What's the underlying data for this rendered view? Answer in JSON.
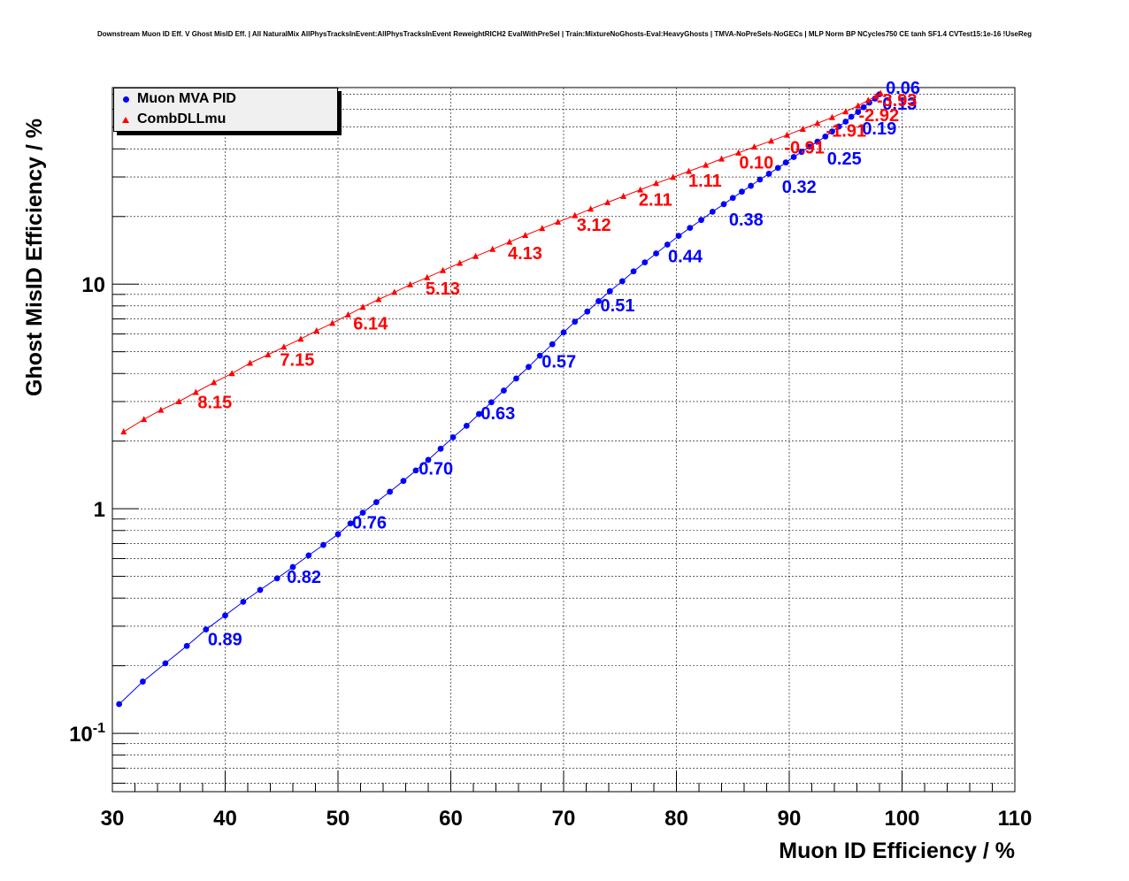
{
  "chart_data": {
    "type": "line",
    "title": "Downstream Muon ID Eff. V Ghost MisID Eff. | All NaturalMix AllPhysTracksInEvent:AllPhysTracksInEvent ReweightRICH2 EvalWithPreSel | Train:MixtureNoGhosts-Eval:HeavyGhosts | TMVA-NoPreSels-NoGECs | MLP Norm BP NCycles750 CE tanh SF1.4 CVTest15:1e-16 !UseReg",
    "xlabel": "Muon ID Efficiency / %",
    "ylabel": "Ghost MisID Efficiency / %",
    "xlim": [
      30,
      110
    ],
    "ylim": [
      0.055,
      75
    ],
    "yscale": "log",
    "grid": true,
    "legend_position": "top-left",
    "x_ticks": [
      "30",
      "40",
      "50",
      "60",
      "70",
      "80",
      "90",
      "100",
      "110"
    ],
    "y_ticks": [
      {
        "value": 0.1,
        "base": "10",
        "exp": "-1"
      },
      {
        "value": 1,
        "base": "1",
        "exp": ""
      },
      {
        "value": 10,
        "base": "10",
        "exp": ""
      }
    ],
    "series": [
      {
        "name": "Muon MVA PID",
        "color": "#0000ff",
        "marker": "circle",
        "x": [
          30.6,
          32.7,
          34.7,
          36.6,
          38.3,
          40.0,
          41.6,
          43.1,
          44.6,
          46.0,
          47.4,
          48.7,
          50.0,
          51.1,
          52.2,
          53.4,
          54.6,
          55.8,
          56.9,
          58.0,
          59.1,
          60.2,
          61.4,
          62.5,
          63.6,
          64.7,
          65.8,
          66.9,
          67.9,
          69.0,
          70.0,
          71.0,
          72.1,
          73.1,
          74.1,
          75.2,
          76.2,
          77.2,
          78.2,
          79.2,
          80.2,
          81.2,
          82.2,
          83.2,
          84.2,
          85.0,
          85.8,
          86.6,
          87.4,
          88.2,
          89.0,
          89.7,
          90.4,
          91.1,
          91.8,
          92.5,
          93.2,
          93.8,
          94.4,
          95.0,
          95.5,
          96.1,
          96.6,
          97.1,
          97.6,
          98.0
        ],
        "y": [
          0.135,
          0.17,
          0.205,
          0.245,
          0.29,
          0.335,
          0.385,
          0.435,
          0.49,
          0.55,
          0.62,
          0.69,
          0.77,
          0.86,
          0.96,
          1.07,
          1.19,
          1.33,
          1.48,
          1.65,
          1.85,
          2.08,
          2.34,
          2.64,
          2.98,
          3.36,
          3.8,
          4.28,
          4.8,
          5.4,
          6.1,
          6.8,
          7.55,
          8.4,
          9.3,
          10.3,
          11.4,
          12.5,
          13.7,
          15.0,
          16.4,
          17.8,
          19.3,
          21.0,
          22.7,
          24.2,
          25.8,
          27.4,
          29.2,
          31.0,
          32.9,
          34.8,
          36.8,
          38.8,
          40.9,
          43.1,
          45.4,
          47.8,
          50.3,
          52.9,
          55.6,
          58.4,
          61.3,
          64.3,
          67.0,
          70.0
        ],
        "point_labels": [
          {
            "text": "0.89",
            "x": 38.3,
            "y": 0.29
          },
          {
            "text": "0.82",
            "x": 45.3,
            "y": 0.55
          },
          {
            "text": "0.76",
            "x": 51.1,
            "y": 0.96
          },
          {
            "text": "0.70",
            "x": 57.0,
            "y": 1.67
          },
          {
            "text": "0.63",
            "x": 62.5,
            "y": 2.95
          },
          {
            "text": "0.57",
            "x": 67.9,
            "y": 5.0
          },
          {
            "text": "0.51",
            "x": 73.1,
            "y": 8.9
          },
          {
            "text": "0.44",
            "x": 79.1,
            "y": 14.7
          },
          {
            "text": "0.38",
            "x": 84.5,
            "y": 21.5
          },
          {
            "text": "0.32",
            "x": 89.2,
            "y": 30.0
          },
          {
            "text": "0.25",
            "x": 93.2,
            "y": 40.2
          },
          {
            "text": "0.19",
            "x": 96.3,
            "y": 54.5
          },
          {
            "text": "0.13",
            "x": 98.1,
            "y": 70.5
          },
          {
            "text": "0.06",
            "x": 98.4,
            "y": 83.0
          }
        ]
      },
      {
        "name": "CombDLLmu",
        "color": "#ff0000",
        "marker": "triangle",
        "x": [
          31.0,
          32.8,
          34.3,
          35.9,
          37.4,
          39.0,
          40.6,
          42.2,
          43.8,
          45.2,
          46.7,
          48.1,
          49.5,
          50.9,
          52.2,
          53.6,
          55.0,
          56.4,
          57.9,
          59.3,
          60.8,
          62.2,
          63.7,
          65.2,
          66.6,
          68.1,
          69.5,
          71.0,
          72.4,
          73.9,
          75.3,
          76.8,
          78.2,
          79.7,
          81.1,
          82.6,
          84.0,
          85.5,
          86.9,
          88.4,
          89.8,
          91.2,
          92.5,
          93.8,
          95.0,
          96.1,
          97.0,
          97.7,
          98.1
        ],
        "y": [
          2.2,
          2.5,
          2.75,
          3.0,
          3.3,
          3.65,
          4.0,
          4.45,
          4.85,
          5.25,
          5.7,
          6.2,
          6.7,
          7.3,
          7.9,
          8.55,
          9.2,
          9.95,
          10.7,
          11.5,
          12.4,
          13.3,
          14.3,
          15.4,
          16.5,
          17.7,
          18.9,
          20.2,
          21.6,
          23.1,
          24.6,
          26.3,
          28.1,
          29.9,
          31.8,
          33.9,
          36.1,
          38.4,
          40.8,
          43.4,
          46.1,
          49.0,
          52.0,
          55.2,
          58.6,
          62.2,
          65.8,
          68.6,
          70.6
        ],
        "point_labels": [
          {
            "text": "8.15",
            "x": 37.4,
            "y": 3.3
          },
          {
            "text": "7.15",
            "x": 44.7,
            "y": 5.1
          },
          {
            "text": "6.14",
            "x": 51.2,
            "y": 7.4
          },
          {
            "text": "5.13",
            "x": 57.6,
            "y": 10.6
          },
          {
            "text": "4.13",
            "x": 64.9,
            "y": 15.2
          },
          {
            "text": "3.12",
            "x": 71.0,
            "y": 20.3
          },
          {
            "text": "2.11",
            "x": 76.5,
            "y": 26.3
          },
          {
            "text": "1.11",
            "x": 80.9,
            "y": 32.0
          },
          {
            "text": "0.10",
            "x": 85.4,
            "y": 38.5
          },
          {
            "text": "-0.91",
            "x": 89.4,
            "y": 45.0
          },
          {
            "text": "-1.91",
            "x": 93.1,
            "y": 53.5
          },
          {
            "text": "-2.92",
            "x": 96.0,
            "y": 62.5
          },
          {
            "text": "-3.93",
            "x": 97.6,
            "y": 73.0
          }
        ]
      }
    ]
  }
}
